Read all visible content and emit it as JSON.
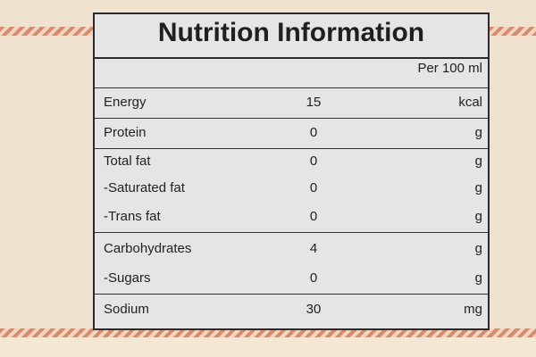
{
  "title": "Nutrition Information",
  "header": "Per 100 ml",
  "rows": [
    [
      "Energy",
      15,
      "kcal"
    ],
    [
      "Protein",
      0,
      "g"
    ],
    [
      "Total fat",
      0,
      "g"
    ],
    [
      "-Saturated fat",
      0,
      "g"
    ],
    [
      "-Trans fat",
      0,
      "g"
    ],
    [
      "Carbohydrates",
      4,
      "g"
    ],
    [
      "-Sugars",
      0,
      "g"
    ],
    [
      "Sodium",
      30,
      "mg"
    ]
  ]
}
